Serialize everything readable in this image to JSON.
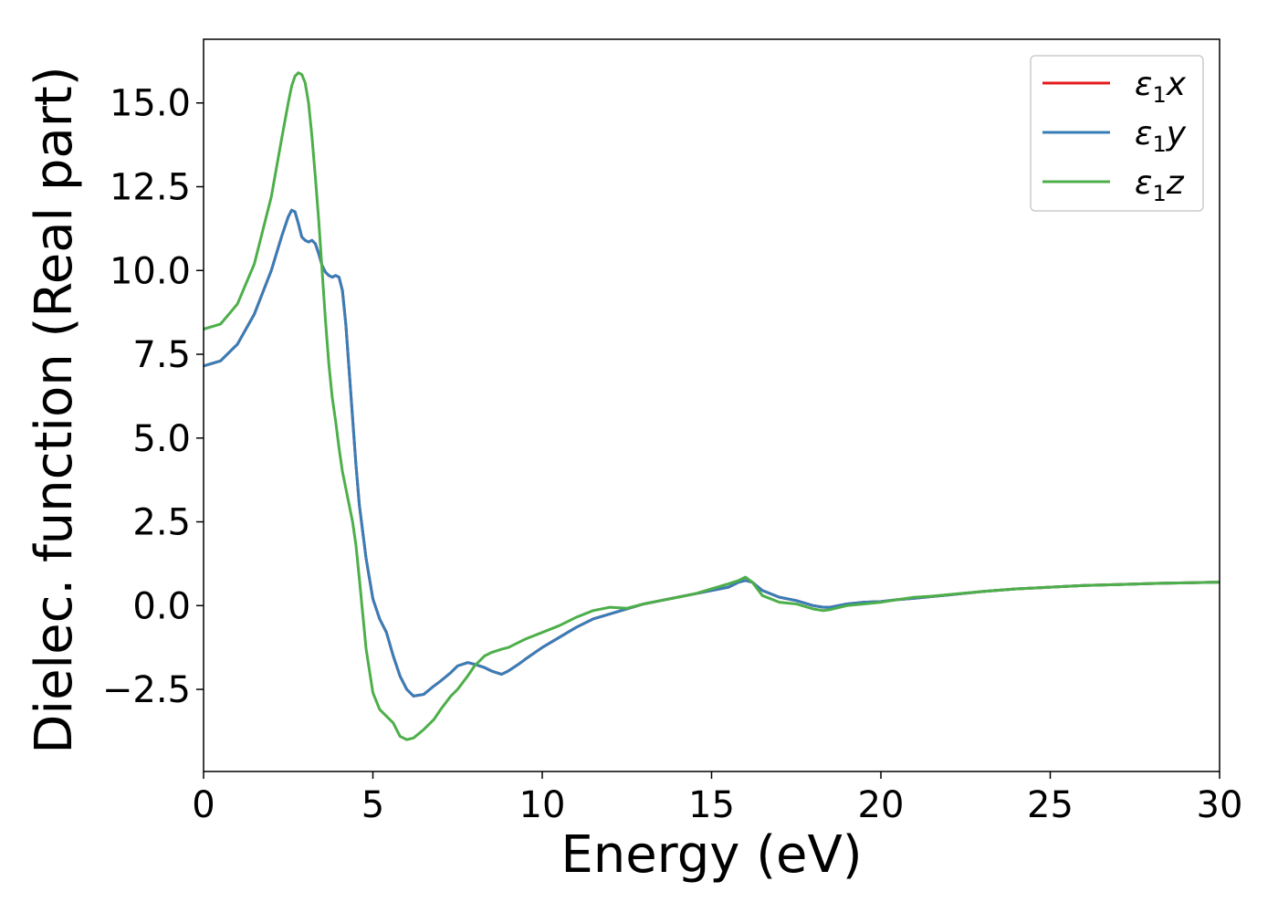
{
  "chart_data": {
    "type": "line",
    "xlabel": "Energy (eV)",
    "ylabel": "Dielec. function (Real part)",
    "xlim": [
      0,
      30
    ],
    "ylim": [
      -4.95,
      16.9
    ],
    "xticks": [
      0,
      5,
      10,
      15,
      20,
      25,
      30
    ],
    "xtick_labels": [
      "0",
      "5",
      "10",
      "15",
      "20",
      "25",
      "30"
    ],
    "yticks": [
      -2.5,
      0.0,
      2.5,
      5.0,
      7.5,
      10.0,
      12.5,
      15.0
    ],
    "ytick_labels": [
      "−2.5",
      "0.0",
      "2.5",
      "5.0",
      "7.5",
      "10.0",
      "12.5",
      "15.0"
    ],
    "grid": false,
    "legend_position": "top-right",
    "x": [
      0,
      0.5,
      1.0,
      1.5,
      2.0,
      2.3,
      2.5,
      2.6,
      2.7,
      2.8,
      2.9,
      3.0,
      3.1,
      3.2,
      3.3,
      3.4,
      3.5,
      3.6,
      3.7,
      3.8,
      3.9,
      4.0,
      4.1,
      4.2,
      4.3,
      4.4,
      4.5,
      4.6,
      4.8,
      5.0,
      5.2,
      5.4,
      5.6,
      5.8,
      6.0,
      6.2,
      6.5,
      6.8,
      7.0,
      7.3,
      7.5,
      7.8,
      8.0,
      8.3,
      8.5,
      8.8,
      9.0,
      9.3,
      9.5,
      10.0,
      10.5,
      11.0,
      11.5,
      12.0,
      12.5,
      13.0,
      13.5,
      14.0,
      14.5,
      15.0,
      15.5,
      15.8,
      16.0,
      16.2,
      16.5,
      17.0,
      17.5,
      18.0,
      18.3,
      18.5,
      19.0,
      19.5,
      20.0,
      20.5,
      21.0,
      21.5,
      22.0,
      23.0,
      24.0,
      25.0,
      26.0,
      27.0,
      28.0,
      29.0,
      30.0
    ],
    "series": [
      {
        "name": "x",
        "color": "#e41a1c",
        "values": [
          7.15,
          7.3,
          7.8,
          8.7,
          10.0,
          11.0,
          11.6,
          11.8,
          11.75,
          11.4,
          11.0,
          10.9,
          10.85,
          10.9,
          10.8,
          10.5,
          10.15,
          9.95,
          9.85,
          9.8,
          9.85,
          9.8,
          9.4,
          8.4,
          7.0,
          5.6,
          4.2,
          3.0,
          1.4,
          0.2,
          -0.4,
          -0.8,
          -1.5,
          -2.1,
          -2.5,
          -2.7,
          -2.65,
          -2.4,
          -2.25,
          -2.0,
          -1.8,
          -1.7,
          -1.75,
          -1.85,
          -1.95,
          -2.05,
          -1.95,
          -1.75,
          -1.6,
          -1.25,
          -0.95,
          -0.65,
          -0.4,
          -0.25,
          -0.1,
          0.05,
          0.15,
          0.25,
          0.35,
          0.45,
          0.55,
          0.7,
          0.75,
          0.7,
          0.45,
          0.25,
          0.15,
          0.0,
          -0.05,
          -0.05,
          0.05,
          0.1,
          0.12,
          0.18,
          0.22,
          0.27,
          0.32,
          0.42,
          0.5,
          0.55,
          0.6,
          0.63,
          0.66,
          0.68,
          0.7
        ]
      },
      {
        "name": "y",
        "color": "#377eb8",
        "values": [
          7.15,
          7.3,
          7.8,
          8.7,
          10.0,
          11.0,
          11.6,
          11.8,
          11.75,
          11.4,
          11.0,
          10.9,
          10.85,
          10.9,
          10.8,
          10.5,
          10.15,
          9.95,
          9.85,
          9.8,
          9.85,
          9.8,
          9.4,
          8.4,
          7.0,
          5.6,
          4.2,
          3.0,
          1.4,
          0.2,
          -0.4,
          -0.8,
          -1.5,
          -2.1,
          -2.5,
          -2.7,
          -2.65,
          -2.4,
          -2.25,
          -2.0,
          -1.8,
          -1.7,
          -1.75,
          -1.85,
          -1.95,
          -2.05,
          -1.95,
          -1.75,
          -1.6,
          -1.25,
          -0.95,
          -0.65,
          -0.4,
          -0.25,
          -0.1,
          0.05,
          0.15,
          0.25,
          0.35,
          0.45,
          0.55,
          0.7,
          0.75,
          0.7,
          0.45,
          0.25,
          0.15,
          0.0,
          -0.05,
          -0.05,
          0.05,
          0.1,
          0.12,
          0.18,
          0.22,
          0.27,
          0.32,
          0.42,
          0.5,
          0.55,
          0.6,
          0.63,
          0.66,
          0.68,
          0.7
        ]
      },
      {
        "name": "z",
        "color": "#4daf4a",
        "values": [
          8.25,
          8.4,
          9.0,
          10.2,
          12.2,
          13.9,
          15.0,
          15.5,
          15.8,
          15.9,
          15.85,
          15.6,
          15.0,
          14.0,
          12.8,
          11.5,
          10.0,
          8.5,
          7.2,
          6.2,
          5.5,
          4.7,
          4.0,
          3.5,
          3.0,
          2.5,
          1.8,
          0.8,
          -1.3,
          -2.6,
          -3.1,
          -3.3,
          -3.5,
          -3.9,
          -4.0,
          -3.95,
          -3.7,
          -3.4,
          -3.1,
          -2.7,
          -2.5,
          -2.1,
          -1.8,
          -1.5,
          -1.4,
          -1.3,
          -1.25,
          -1.1,
          -1.0,
          -0.8,
          -0.6,
          -0.35,
          -0.15,
          -0.05,
          -0.08,
          0.05,
          0.15,
          0.25,
          0.35,
          0.5,
          0.65,
          0.75,
          0.85,
          0.7,
          0.3,
          0.1,
          0.05,
          -0.1,
          -0.15,
          -0.12,
          0.0,
          0.05,
          0.1,
          0.18,
          0.25,
          0.28,
          0.33,
          0.42,
          0.5,
          0.55,
          0.6,
          0.63,
          0.66,
          0.68,
          0.7
        ]
      }
    ]
  }
}
